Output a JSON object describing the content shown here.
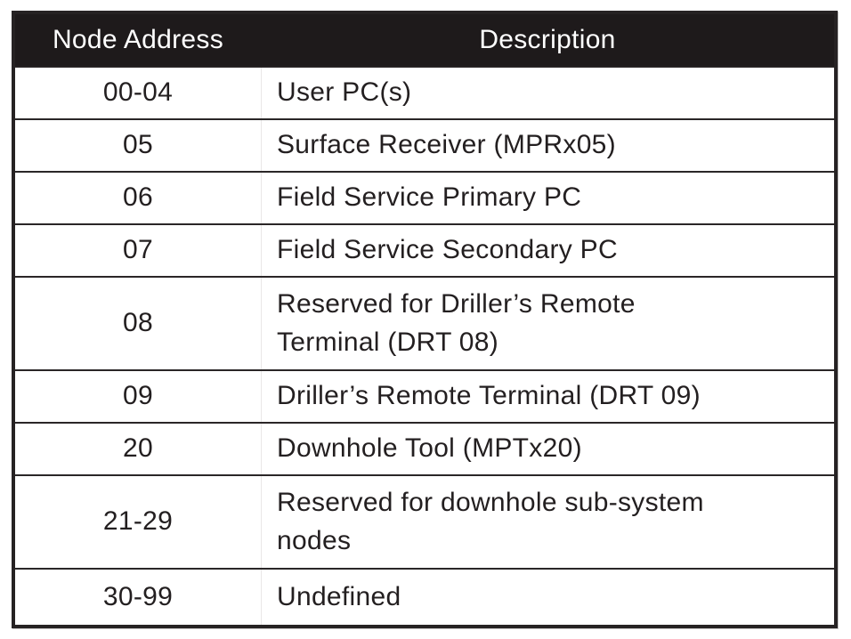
{
  "table": {
    "columns": {
      "address": "Node Address",
      "description": "Description"
    },
    "rows": [
      {
        "address": "00-04",
        "description": "User PC(s)"
      },
      {
        "address": "05",
        "description": "Surface Receiver (MPRx05)"
      },
      {
        "address": "06",
        "description": "Field Service Primary PC"
      },
      {
        "address": "07",
        "description": "Field Service Secondary PC"
      },
      {
        "address": "08",
        "description": "Reserved for Driller’s Remote\nTerminal (DRT 08)"
      },
      {
        "address": "09",
        "description": "Driller’s Remote Terminal (DRT 09)"
      },
      {
        "address": "20",
        "description": "Downhole Tool (MPTx20)"
      },
      {
        "address": "21-29",
        "description": "Reserved for downhole sub-system\nnodes"
      },
      {
        "address": "30-99",
        "description": "Undefined"
      }
    ],
    "colors": {
      "header_bg": "#1e1a1b",
      "header_text": "#ffffff",
      "body_text": "#231f20",
      "border": "#262223",
      "row_bg": "#ffffff"
    }
  }
}
